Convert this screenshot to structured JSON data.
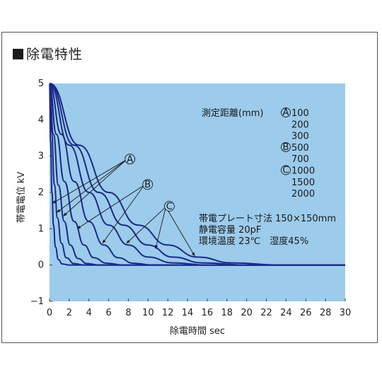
{
  "title": "除電特性",
  "chart_data": {
    "type": "line",
    "xlabel": "除電時間 sec",
    "ylabel": "帯電電位 kV",
    "xlim": [
      0,
      30
    ],
    "ylim": [
      -1,
      5
    ],
    "x_ticks": [
      "0",
      "2",
      "4",
      "6",
      "8",
      "10",
      "12",
      "14",
      "16",
      "18",
      "20",
      "22",
      "24",
      "26",
      "28",
      "30"
    ],
    "y_ticks": [
      "−1",
      "0",
      "1",
      "2",
      "3",
      "4",
      "5"
    ],
    "legend_header": "測定距離(mm)",
    "series": [
      {
        "name": "100",
        "group": "A",
        "x": [
          0,
          0.1,
          0.25,
          0.4,
          0.6,
          0.9,
          1.3,
          2.0
        ],
        "y": [
          5.0,
          3.4,
          2.0,
          1.1,
          0.5,
          0.15,
          0.03,
          0.0
        ]
      },
      {
        "name": "200",
        "group": "A",
        "x": [
          0,
          0.2,
          0.5,
          0.8,
          1.2,
          1.7,
          2.5,
          3.5
        ],
        "y": [
          5.0,
          3.7,
          2.2,
          1.3,
          0.6,
          0.2,
          0.04,
          0.0
        ]
      },
      {
        "name": "300",
        "group": "A",
        "x": [
          0,
          0.4,
          0.9,
          1.5,
          2.1,
          2.9,
          3.8,
          5.0
        ],
        "y": [
          5.0,
          3.6,
          2.2,
          1.2,
          0.55,
          0.18,
          0.04,
          0.0
        ]
      },
      {
        "name": "500",
        "group": "B",
        "x": [
          0,
          0.7,
          1.5,
          2.5,
          3.5,
          4.5,
          5.8,
          7.5
        ],
        "y": [
          5.0,
          3.6,
          2.3,
          1.2,
          0.55,
          0.2,
          0.05,
          0.0
        ]
      },
      {
        "name": "700",
        "group": "B",
        "x": [
          0,
          1.2,
          2.5,
          4.0,
          5.5,
          7.0,
          8.5,
          10.5
        ],
        "y": [
          5.0,
          3.6,
          2.3,
          1.2,
          0.55,
          0.2,
          0.05,
          0.0
        ]
      },
      {
        "name": "1000",
        "group": "C",
        "x": [
          0,
          2.0,
          4.0,
          6.0,
          8.0,
          10.0,
          12.5,
          16.0
        ],
        "y": [
          5.0,
          3.3,
          2.0,
          1.1,
          0.55,
          0.22,
          0.06,
          0.0
        ]
      },
      {
        "name": "1500",
        "group": "C",
        "x": [
          0,
          2.5,
          5.0,
          7.5,
          10.0,
          12.5,
          15.5,
          20.0
        ],
        "y": [
          5.0,
          3.3,
          2.0,
          1.1,
          0.55,
          0.22,
          0.06,
          0.0
        ]
      },
      {
        "name": "2000",
        "group": "C",
        "x": [
          0,
          3.0,
          6.0,
          9.0,
          12.0,
          15.0,
          18.5,
          23.5
        ],
        "y": [
          5.0,
          3.3,
          2.0,
          1.1,
          0.55,
          0.22,
          0.06,
          0.0
        ]
      }
    ],
    "legend_groups": [
      {
        "label": "A",
        "values": [
          "100",
          "200",
          "300"
        ]
      },
      {
        "label": "B",
        "values": [
          "500",
          "700"
        ]
      },
      {
        "label": "C",
        "values": [
          "1000",
          "1500",
          "2000"
        ]
      }
    ],
    "annotations": [
      "帯電プレート寸法 150×150mm",
      "静電容量 20pF",
      "環境温度 23℃　湿度45%"
    ],
    "grid": false,
    "background_color": "#9ccbec",
    "line_color": "#1c2a86"
  }
}
